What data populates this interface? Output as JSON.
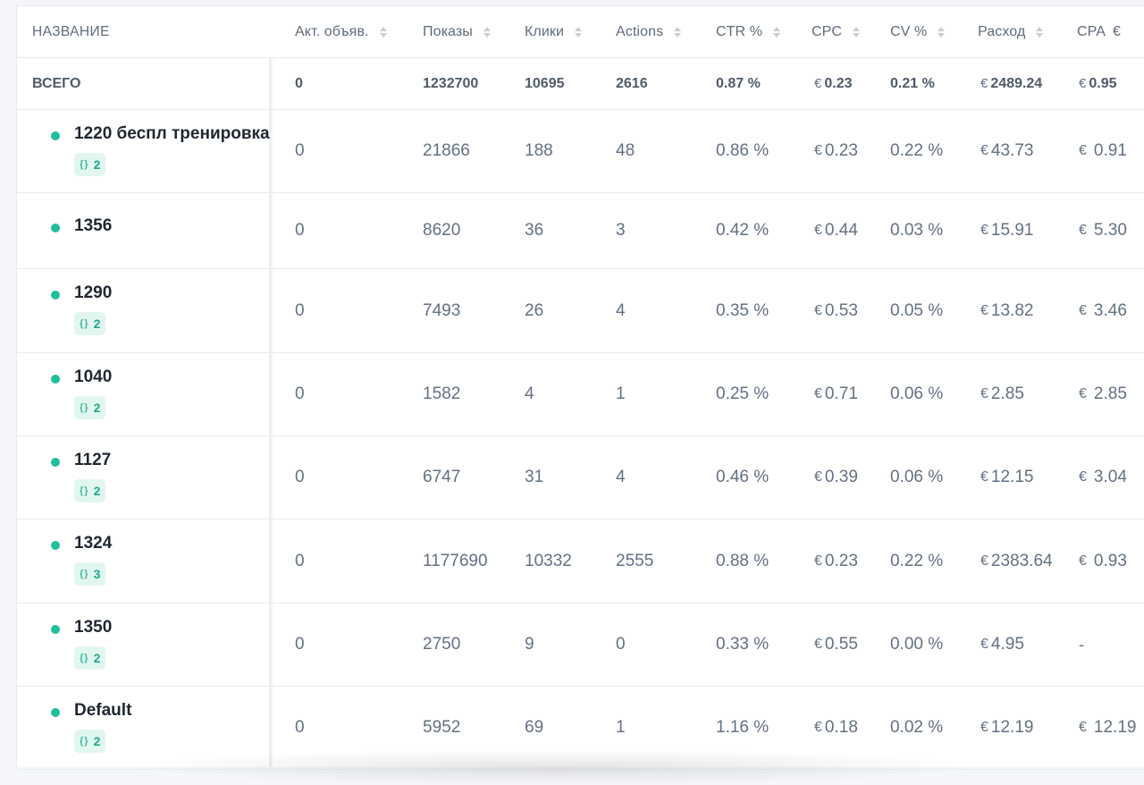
{
  "columns": {
    "name": "НАЗВАНИЕ",
    "active_ads": "Акт. объяв.",
    "impressions": "Показы",
    "clicks": "Клики",
    "actions": "Actions",
    "ctr": "CTR %",
    "cpc": "CPC",
    "cv": "CV %",
    "spend": "Расход",
    "cpa": "CPA",
    "cpa_currency": "€"
  },
  "currency_symbol": "€",
  "total": {
    "label": "ВСЕГО",
    "active_ads": "0",
    "impressions": "1232700",
    "clicks": "10695",
    "actions": "2616",
    "ctr": "0.87 %",
    "cpc": "0.23",
    "cv": "0.21 %",
    "spend": "2489.24",
    "cpa": "0.95"
  },
  "rows": [
    {
      "name": "1220 беспл тренировка",
      "badge_count": "2",
      "active_ads": "0",
      "impressions": "21866",
      "clicks": "188",
      "actions": "48",
      "ctr": "0.86 %",
      "cpc": "0.23",
      "cv": "0.22 %",
      "spend": "43.73",
      "cpa": "0.91"
    },
    {
      "name": "1356",
      "badge_count": "",
      "active_ads": "0",
      "impressions": "8620",
      "clicks": "36",
      "actions": "3",
      "ctr": "0.42 %",
      "cpc": "0.44",
      "cv": "0.03 %",
      "spend": "15.91",
      "cpa": "5.30"
    },
    {
      "name": "1290",
      "badge_count": "2",
      "active_ads": "0",
      "impressions": "7493",
      "clicks": "26",
      "actions": "4",
      "ctr": "0.35 %",
      "cpc": "0.53",
      "cv": "0.05 %",
      "spend": "13.82",
      "cpa": "3.46"
    },
    {
      "name": "1040",
      "badge_count": "2",
      "active_ads": "0",
      "impressions": "1582",
      "clicks": "4",
      "actions": "1",
      "ctr": "0.25 %",
      "cpc": "0.71",
      "cv": "0.06 %",
      "spend": "2.85",
      "cpa": "2.85"
    },
    {
      "name": "1127",
      "badge_count": "2",
      "active_ads": "0",
      "impressions": "6747",
      "clicks": "31",
      "actions": "4",
      "ctr": "0.46 %",
      "cpc": "0.39",
      "cv": "0.06 %",
      "spend": "12.15",
      "cpa": "3.04"
    },
    {
      "name": "1324",
      "badge_count": "3",
      "active_ads": "0",
      "impressions": "1177690",
      "clicks": "10332",
      "actions": "2555",
      "ctr": "0.88 %",
      "cpc": "0.23",
      "cv": "0.22 %",
      "spend": "2383.64",
      "cpa": "0.93"
    },
    {
      "name": "1350",
      "badge_count": "2",
      "active_ads": "0",
      "impressions": "2750",
      "clicks": "9",
      "actions": "0",
      "ctr": "0.33 %",
      "cpc": "0.55",
      "cv": "0.00 %",
      "spend": "4.95",
      "cpa": "-"
    },
    {
      "name": "Default",
      "badge_count": "2",
      "active_ads": "0",
      "impressions": "5952",
      "clicks": "69",
      "actions": "1",
      "ctr": "1.16 %",
      "cpc": "0.18",
      "cv": "0.02 %",
      "spend": "12.19",
      "cpa": "12.19"
    }
  ],
  "icons": {
    "status_dot": "status-dot-icon",
    "badge_icon": "code-braces-icon",
    "sort_icon": "sort-arrows-icon"
  },
  "colors": {
    "active_status": "#1fbf9c",
    "badge_bg": "#e2f6f0",
    "badge_text": "#1fa98b"
  }
}
